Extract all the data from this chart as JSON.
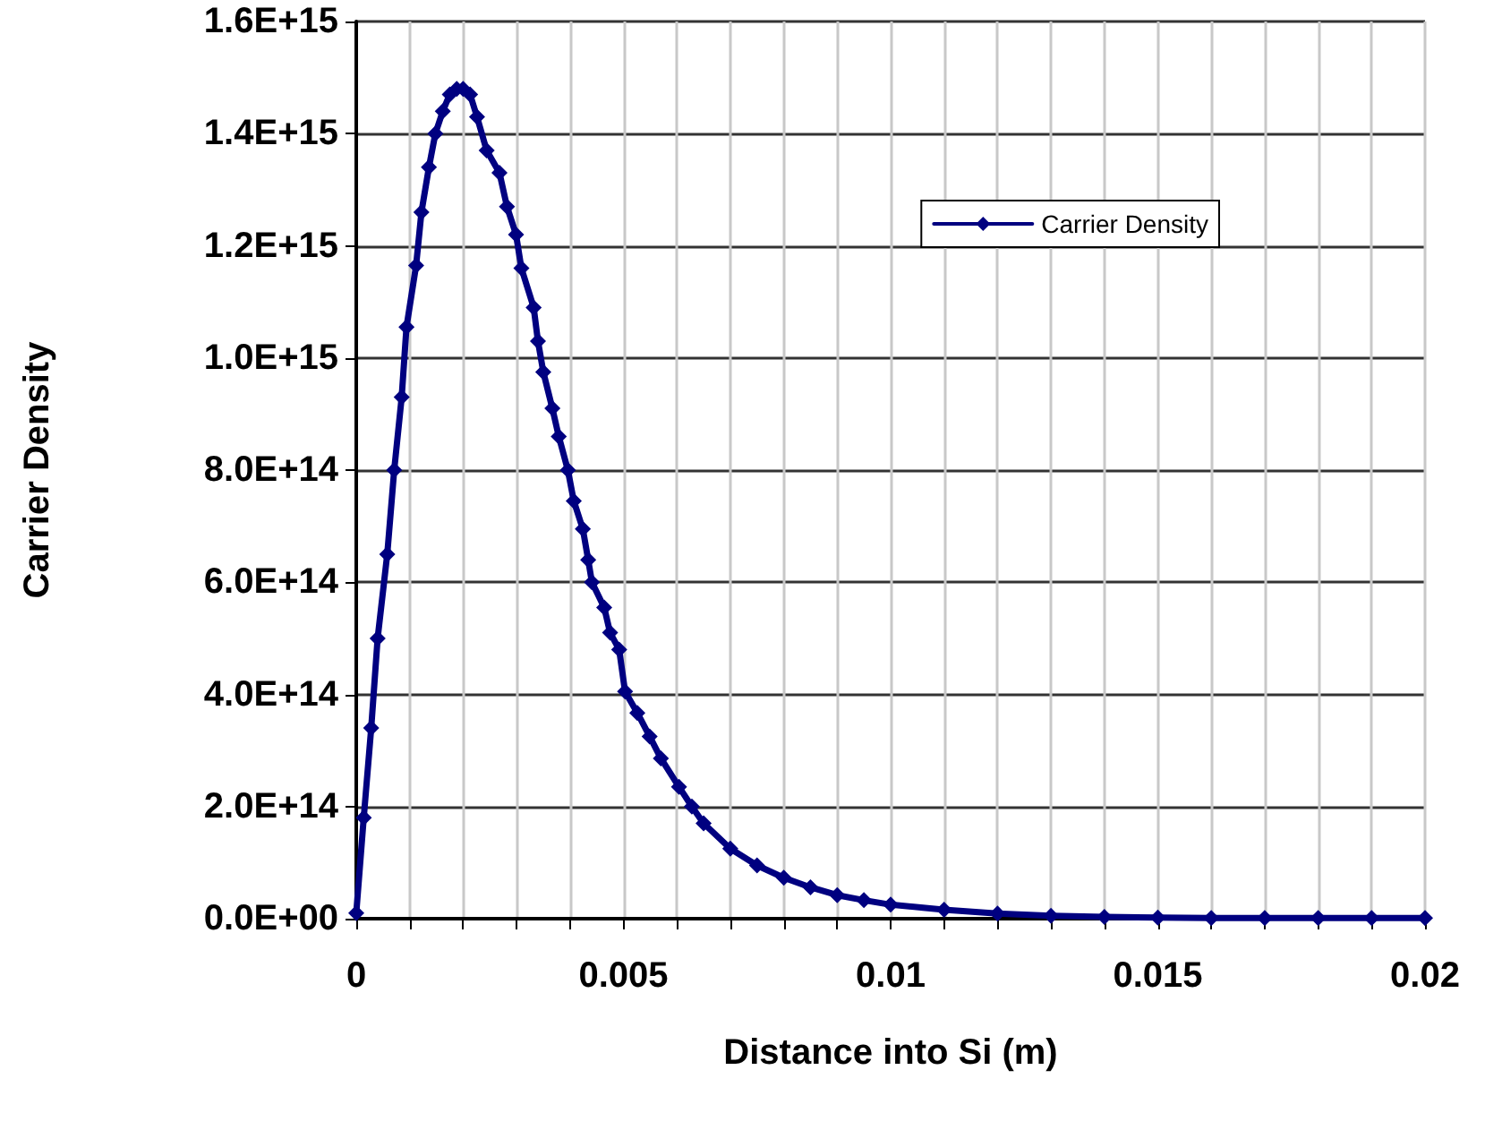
{
  "chart_data": {
    "type": "line",
    "xlabel": "Distance into Si (m)",
    "ylabel": "Carrier Density",
    "xlim": [
      0,
      0.02
    ],
    "xticks": [
      0,
      {
        "value": 0.001,
        "label": null
      },
      {
        "value": 0.002,
        "label": null
      },
      {
        "value": 0.003,
        "label": null
      },
      {
        "value": 0.004,
        "label": null
      },
      0.005,
      {
        "value": 0.006,
        "label": null
      },
      {
        "value": 0.007,
        "label": null
      },
      {
        "value": 0.008,
        "label": null
      },
      {
        "value": 0.009,
        "label": null
      },
      0.01,
      {
        "value": 0.011,
        "label": null
      },
      {
        "value": 0.012,
        "label": null
      },
      {
        "value": 0.013,
        "label": null
      },
      {
        "value": 0.014,
        "label": null
      },
      0.015,
      {
        "value": 0.016,
        "label": null
      },
      {
        "value": 0.017,
        "label": null
      },
      {
        "value": 0.018,
        "label": null
      },
      {
        "value": 0.019,
        "label": null
      },
      0.02
    ],
    "ylim": [
      0,
      1600000000000000.0
    ],
    "yticks": [
      {
        "value": 0,
        "label": "0.0E+00"
      },
      {
        "value": 200000000000000.0,
        "label": "2.0E+14"
      },
      {
        "value": 400000000000000.0,
        "label": "4.0E+14"
      },
      {
        "value": 600000000000000.0,
        "label": "6.0E+14"
      },
      {
        "value": 800000000000000.0,
        "label": "8.0E+14"
      },
      {
        "value": 1000000000000000.0,
        "label": "1.0E+15"
      },
      {
        "value": 1200000000000000.0,
        "label": "1.2E+15"
      },
      {
        "value": 1400000000000000.0,
        "label": "1.4E+15"
      },
      {
        "value": 1600000000000000.0,
        "label": "1.6E+15"
      }
    ],
    "grid": true,
    "legend": "top right",
    "marker": "diamond",
    "line_style": "solid",
    "x": [
      0,
      0.00014,
      0.00028,
      0.0004,
      0.00058,
      0.00071,
      0.00085,
      0.00094,
      0.00112,
      0.00122,
      0.00136,
      0.00148,
      0.00162,
      0.00175,
      0.00188,
      0.002,
      0.00213,
      0.00226,
      0.00244,
      0.00268,
      0.00282,
      0.00299,
      0.00309,
      0.00332,
      0.0034,
      0.0035,
      0.00367,
      0.00379,
      0.00396,
      0.00407,
      0.00424,
      0.00434,
      0.00441,
      0.00464,
      0.00475,
      0.00492,
      0.00503,
      0.00526,
      0.00549,
      0.0057,
      0.00604,
      0.00628,
      0.0065,
      0.007,
      0.0075,
      0.008,
      0.0085,
      0.009,
      0.0095,
      0.01,
      0.011,
      0.012,
      0.013,
      0.014,
      0.015,
      0.016,
      0.017,
      0.018,
      0.019,
      0.02
    ],
    "series": [
      {
        "name": "Carrier Density",
        "color": "#000080",
        "values": [
          10000000000000.0,
          180000000000000.0,
          340000000000000.0,
          500000000000000.0,
          650000000000000.0,
          800000000000000.0,
          930000000000000.0,
          1055000000000000.0,
          1165000000000000.0,
          1260000000000000.0,
          1340000000000000.0,
          1400000000000000.0,
          1440000000000000.0,
          1470000000000000.0,
          1480000000000000.0,
          1480000000000000.0,
          1470000000000000.0,
          1430000000000000.0,
          1370000000000000.0,
          1330000000000000.0,
          1270000000000000.0,
          1220000000000000.0,
          1160000000000000.0,
          1090000000000000.0,
          1030000000000000.0,
          975000000000000.0,
          910000000000000.0,
          860000000000000.0,
          800000000000000.0,
          745000000000000.0,
          695000000000000.0,
          640000000000000.0,
          600000000000000.0,
          555000000000000.0,
          510000000000000.0,
          480000000000000.0,
          405000000000000.0,
          367000000000000.0,
          325000000000000.0,
          286000000000000.0,
          235000000000000.0,
          200000000000000.0,
          170000000000000.0,
          125000000000000.0,
          95000000000000.0,
          73000000000000.0,
          56000000000000.0,
          42000000000000.0,
          33000000000000.0,
          25000000000000.0,
          16000000000000.0,
          9000000000000.0,
          5000000000000.0,
          3000000000000.0,
          2000000000000.0,
          1000000000000.0,
          1000000000000.0,
          1000000000000.0,
          1000000000000.0,
          1000000000000.0
        ]
      }
    ]
  }
}
